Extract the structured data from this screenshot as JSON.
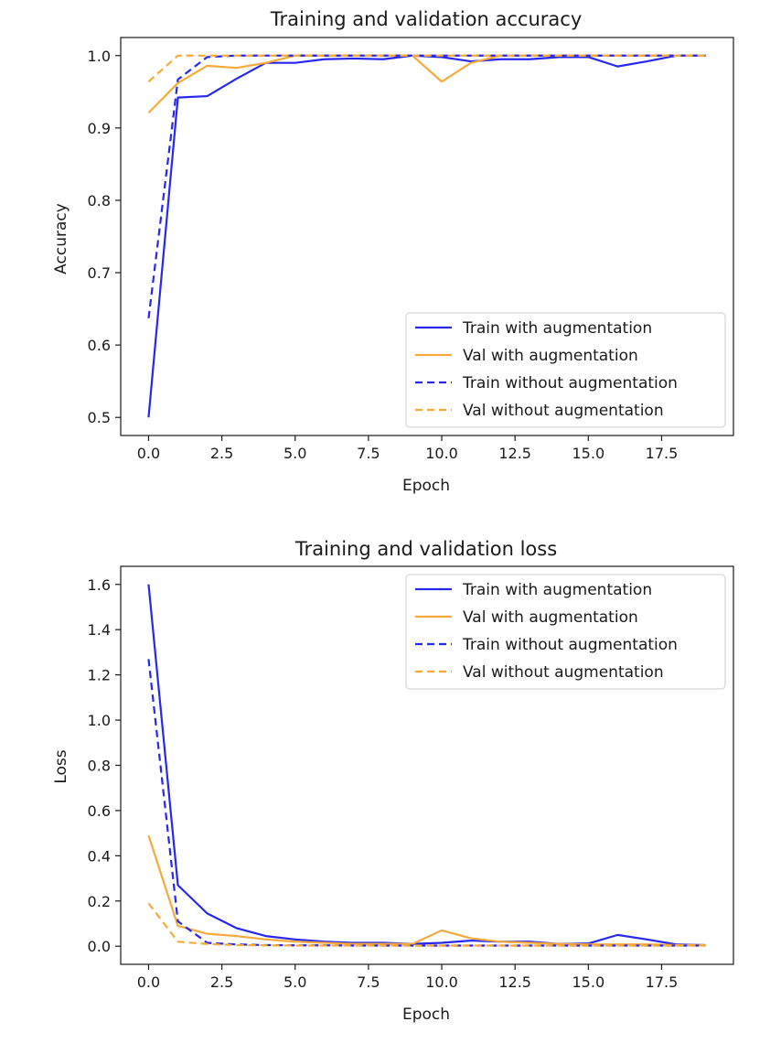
{
  "colors": {
    "train": "#2727f0",
    "val": "#f5aa3b"
  },
  "chart_data": [
    {
      "type": "line",
      "title": "Training and validation accuracy",
      "xlabel": "Epoch",
      "ylabel": "Accuracy",
      "xlim": [
        -0.95,
        19.95
      ],
      "ylim": [
        0.475,
        1.025
      ],
      "xticks": [
        0.0,
        2.5,
        5.0,
        7.5,
        10.0,
        12.5,
        15.0,
        17.5
      ],
      "xtick_labels": [
        "0.0",
        "2.5",
        "5.0",
        "7.5",
        "10.0",
        "12.5",
        "15.0",
        "17.5"
      ],
      "yticks": [
        0.5,
        0.6,
        0.7,
        0.8,
        0.9,
        1.0
      ],
      "ytick_labels": [
        "0.5",
        "0.6",
        "0.7",
        "0.8",
        "0.9",
        "1.0"
      ],
      "legend_position": "lower-right",
      "grid": false,
      "x": [
        0,
        1,
        2,
        3,
        4,
        5,
        6,
        7,
        8,
        9,
        10,
        11,
        12,
        13,
        14,
        15,
        16,
        17,
        18,
        19
      ],
      "series": [
        {
          "name": "Train with augmentation",
          "color_key": "train",
          "dash": false,
          "values": [
            0.5,
            0.942,
            0.944,
            0.968,
            0.99,
            0.99,
            0.995,
            0.996,
            0.995,
            1.0,
            0.998,
            0.992,
            0.995,
            0.995,
            0.998,
            0.998,
            0.985,
            0.992,
            1.0,
            1.0
          ]
        },
        {
          "name": "Val with augmentation",
          "color_key": "val",
          "dash": false,
          "values": [
            0.921,
            0.962,
            0.986,
            0.983,
            0.99,
            1.0,
            1.0,
            1.0,
            1.0,
            1.0,
            0.964,
            0.99,
            1.0,
            1.0,
            1.0,
            1.0,
            1.0,
            1.0,
            1.0,
            1.0
          ]
        },
        {
          "name": "Train without augmentation",
          "color_key": "train",
          "dash": true,
          "values": [
            0.637,
            0.967,
            0.998,
            1.0,
            1.0,
            1.0,
            1.0,
            1.0,
            1.0,
            1.0,
            1.0,
            1.0,
            1.0,
            1.0,
            1.0,
            1.0,
            1.0,
            1.0,
            1.0,
            1.0
          ]
        },
        {
          "name": "Val without augmentation",
          "color_key": "val",
          "dash": true,
          "values": [
            0.964,
            1.0,
            1.0,
            1.0,
            1.0,
            1.0,
            1.0,
            1.0,
            1.0,
            1.0,
            1.0,
            1.0,
            1.0,
            1.0,
            1.0,
            1.0,
            1.0,
            1.0,
            1.0,
            1.0
          ]
        }
      ]
    },
    {
      "type": "line",
      "title": "Training and validation loss",
      "xlabel": "Epoch",
      "ylabel": "Loss",
      "xlim": [
        -0.95,
        19.95
      ],
      "ylim": [
        -0.08,
        1.68
      ],
      "xticks": [
        0.0,
        2.5,
        5.0,
        7.5,
        10.0,
        12.5,
        15.0,
        17.5
      ],
      "xtick_labels": [
        "0.0",
        "2.5",
        "5.0",
        "7.5",
        "10.0",
        "12.5",
        "15.0",
        "17.5"
      ],
      "yticks": [
        0.0,
        0.2,
        0.4,
        0.6,
        0.8,
        1.0,
        1.2,
        1.4,
        1.6
      ],
      "ytick_labels": [
        "0.0",
        "0.2",
        "0.4",
        "0.6",
        "0.8",
        "1.0",
        "1.2",
        "1.4",
        "1.6"
      ],
      "legend_position": "upper-right",
      "grid": false,
      "x": [
        0,
        1,
        2,
        3,
        4,
        5,
        6,
        7,
        8,
        9,
        10,
        11,
        12,
        13,
        14,
        15,
        16,
        17,
        18,
        19
      ],
      "series": [
        {
          "name": "Train with augmentation",
          "color_key": "train",
          "dash": false,
          "values": [
            1.6,
            0.27,
            0.145,
            0.08,
            0.045,
            0.03,
            0.02,
            0.015,
            0.015,
            0.01,
            0.015,
            0.025,
            0.02,
            0.02,
            0.01,
            0.012,
            0.05,
            0.03,
            0.008,
            0.005
          ]
        },
        {
          "name": "Val with augmentation",
          "color_key": "val",
          "dash": false,
          "values": [
            0.49,
            0.09,
            0.055,
            0.045,
            0.03,
            0.02,
            0.015,
            0.01,
            0.01,
            0.01,
            0.07,
            0.035,
            0.02,
            0.015,
            0.01,
            0.008,
            0.008,
            0.008,
            0.005,
            0.005
          ]
        },
        {
          "name": "Train without augmentation",
          "color_key": "train",
          "dash": true,
          "values": [
            1.27,
            0.11,
            0.015,
            0.008,
            0.005,
            0.004,
            0.004,
            0.003,
            0.003,
            0.003,
            0.003,
            0.003,
            0.003,
            0.003,
            0.003,
            0.003,
            0.003,
            0.003,
            0.003,
            0.003
          ]
        },
        {
          "name": "Val without augmentation",
          "color_key": "val",
          "dash": true,
          "values": [
            0.19,
            0.02,
            0.01,
            0.005,
            0.004,
            0.003,
            0.003,
            0.003,
            0.003,
            0.003,
            0.003,
            0.003,
            0.003,
            0.003,
            0.003,
            0.003,
            0.003,
            0.003,
            0.003,
            0.003
          ]
        }
      ]
    }
  ]
}
